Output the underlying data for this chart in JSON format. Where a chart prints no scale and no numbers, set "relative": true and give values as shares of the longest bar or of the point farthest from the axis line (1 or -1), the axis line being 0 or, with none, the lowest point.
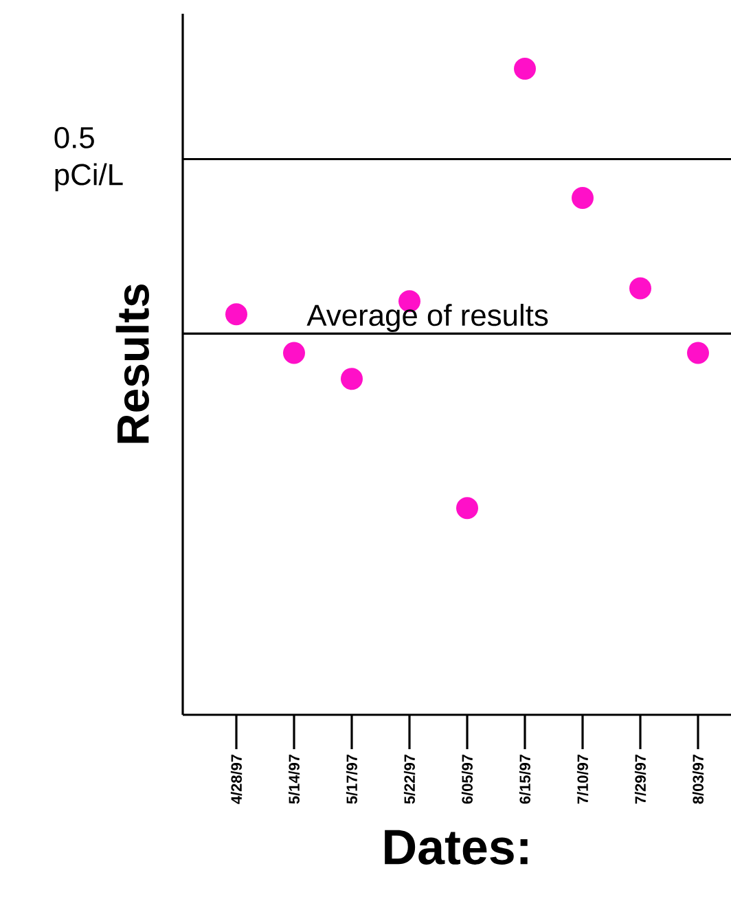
{
  "chart_data": {
    "type": "scatter",
    "xlabel": "Dates:",
    "ylabel": "Results",
    "relative": true,
    "marker": "circle",
    "categories": [
      "4/28/97",
      "5/14/97",
      "5/17/97",
      "5/22/97",
      "6/05/97",
      "6/15/97",
      "7/10/97",
      "7/29/97",
      "8/03/97"
    ],
    "series": [
      {
        "color": "#ff10c8",
        "values": [
          0.62,
          0.56,
          0.52,
          0.64,
          0.32,
          1,
          0.8,
          0.66,
          0.56
        ]
      }
    ],
    "ref_lines": [
      {
        "axis": "y",
        "value": 0.86,
        "label": "0.5 pCi/L",
        "color": "#000000"
      },
      {
        "axis": "y",
        "value": 0.59,
        "label": "Average of results",
        "color": "#000000"
      }
    ]
  }
}
